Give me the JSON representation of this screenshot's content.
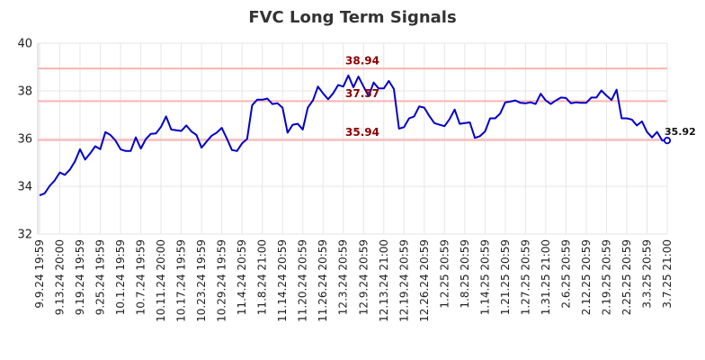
{
  "chart_data": {
    "type": "line",
    "title": "FVC Long Term Signals",
    "ylim": [
      32,
      40
    ],
    "yticks": [
      32,
      34,
      36,
      38,
      40
    ],
    "grid": true,
    "xticks": [
      "9.9.24 19:59",
      "9.13.24 20:00",
      "9.19.24 19:59",
      "9.25.24 19:59",
      "10.1.24 19:59",
      "10.7.24 19:59",
      "10.11.24 20:00",
      "10.17.24 19:59",
      "10.23.24 19:59",
      "10.29.24 19:59",
      "11.4.24 20:59",
      "11.8.24 21:00",
      "11.14.24 20:59",
      "11.20.24 20:59",
      "11.26.24 20:59",
      "12.3.24 20:59",
      "12.9.24 20:59",
      "12.13.24 21:00",
      "12.19.24 20:59",
      "12.26.24 20:59",
      "1.2.25 20:59",
      "1.8.25 20:59",
      "1.14.25 20:59",
      "1.21.25 20:59",
      "1.27.25 20:59",
      "1.31.25 21:00",
      "2.6.25 20:59",
      "2.12.25 20:59",
      "2.19.25 20:59",
      "2.25.25 20:59",
      "3.3.25 20:59",
      "3.7.25 21:00"
    ],
    "signals": [
      {
        "value": 38.94,
        "label": "38.94",
        "color": "#ffb3b3"
      },
      {
        "value": 37.57,
        "label": "37.57",
        "color": "#ffb3b3"
      },
      {
        "value": 35.94,
        "label": "35.94",
        "color": "#ffb3b3"
      }
    ],
    "last_value_label": "35.92",
    "line_color": "#0000cc",
    "series": [
      {
        "values": [
          33.62,
          33.7,
          34.02,
          34.25,
          34.58,
          34.48,
          34.7,
          35.05,
          35.55,
          35.12,
          35.38,
          35.68,
          35.56,
          36.27,
          36.15,
          35.92,
          35.55,
          35.48,
          35.48,
          36.05,
          35.58,
          35.98,
          36.2,
          36.22,
          36.5,
          36.93,
          36.38,
          36.35,
          36.32,
          36.55,
          36.3,
          36.15,
          35.62,
          35.88,
          36.12,
          36.25,
          36.45,
          36.0,
          35.52,
          35.48,
          35.8,
          35.98,
          37.4,
          37.63,
          37.63,
          37.68,
          37.45,
          37.48,
          37.3,
          36.25,
          36.58,
          36.62,
          36.38,
          37.3,
          37.6,
          38.18,
          37.9,
          37.65,
          37.9,
          38.25,
          38.18,
          38.65,
          38.15,
          38.6,
          38.18,
          37.78,
          38.35,
          38.1,
          38.1,
          38.42,
          38.08,
          36.42,
          36.48,
          36.85,
          36.93,
          37.35,
          37.3,
          36.95,
          36.65,
          36.58,
          36.52,
          36.82,
          37.22,
          36.62,
          36.65,
          36.68,
          36.03,
          36.1,
          36.3,
          36.85,
          36.85,
          37.05,
          37.52,
          37.55,
          37.6,
          37.5,
          37.48,
          37.52,
          37.45,
          37.88,
          37.6,
          37.45,
          37.6,
          37.72,
          37.7,
          37.48,
          37.52,
          37.5,
          37.5,
          37.72,
          37.72,
          38.02,
          37.8,
          37.62,
          38.05,
          36.85,
          36.85,
          36.8,
          36.55,
          36.72,
          36.28,
          36.05,
          36.28,
          35.92,
          35.92
        ]
      }
    ]
  }
}
